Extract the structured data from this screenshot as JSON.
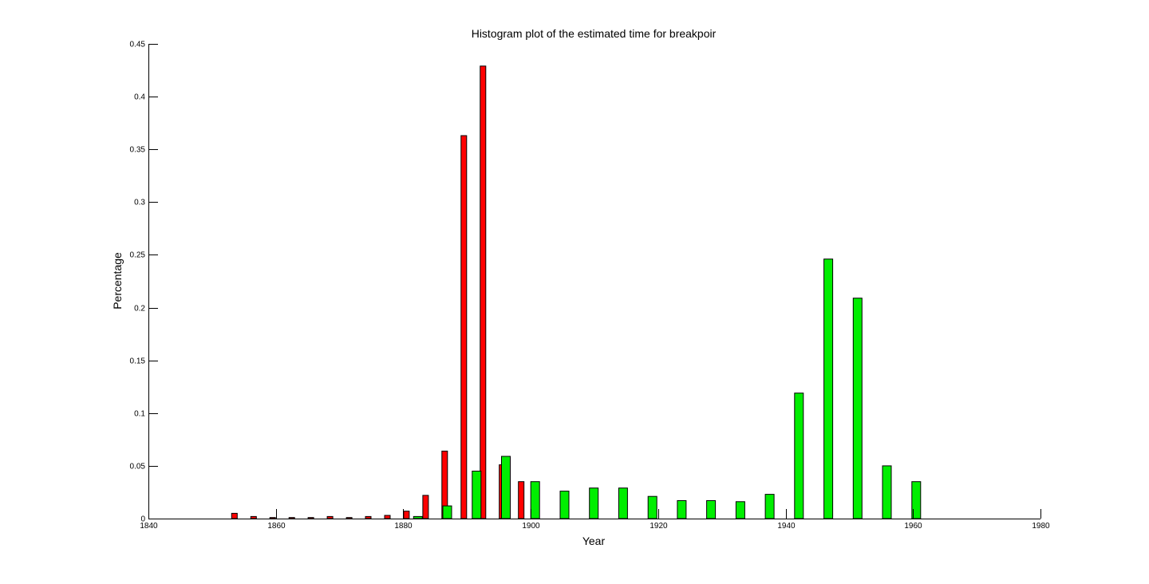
{
  "chart_data": {
    "type": "bar",
    "title": "Histogram plot of the estimated time for breakpoir",
    "xlabel": "Year",
    "ylabel": "Percentage",
    "xlim": [
      1840,
      1980
    ],
    "ylim": [
      0,
      0.45
    ],
    "xticks": [
      "1840",
      "1860",
      "1880",
      "1900",
      "1920",
      "1940",
      "1960",
      "1980"
    ],
    "yticks": [
      "0",
      "0.05",
      "0.1",
      "0.15",
      "0.2",
      "0.25",
      "0.3",
      "0.35",
      "0.4",
      "0.45"
    ],
    "grid": false,
    "legend": null,
    "series": [
      {
        "color": "#ff0000",
        "x": [
          1853.5,
          1856.5,
          1859.5,
          1862.5,
          1865.5,
          1868.5,
          1871.5,
          1874.5,
          1877.5,
          1880.5,
          1883.5,
          1886.5,
          1889.5,
          1892.5,
          1895.5,
          1898.5
        ],
        "values": [
          0.005,
          0.002,
          0.001,
          0.001,
          0.001,
          0.002,
          0.001,
          0.002,
          0.003,
          0.007,
          0.022,
          0.064,
          0.363,
          0.429,
          0.051,
          0.035
        ]
      },
      {
        "color": "#00ee00",
        "x": [
          1877.7,
          1882.3,
          1886.9,
          1891.5,
          1896.1,
          1900.7,
          1905.3,
          1909.9,
          1914.5,
          1919.1,
          1923.7,
          1928.3,
          1932.9,
          1937.5,
          1942.1,
          1946.7,
          1951.3,
          1955.9,
          1960.5
        ],
        "values": [
          0,
          0.002,
          0.012,
          0.045,
          0.059,
          0.035,
          0.026,
          0.029,
          0.029,
          0.021,
          0.017,
          0.017,
          0.016,
          0.023,
          0.119,
          0.246,
          0.209,
          0.05,
          0.035
        ]
      }
    ]
  }
}
